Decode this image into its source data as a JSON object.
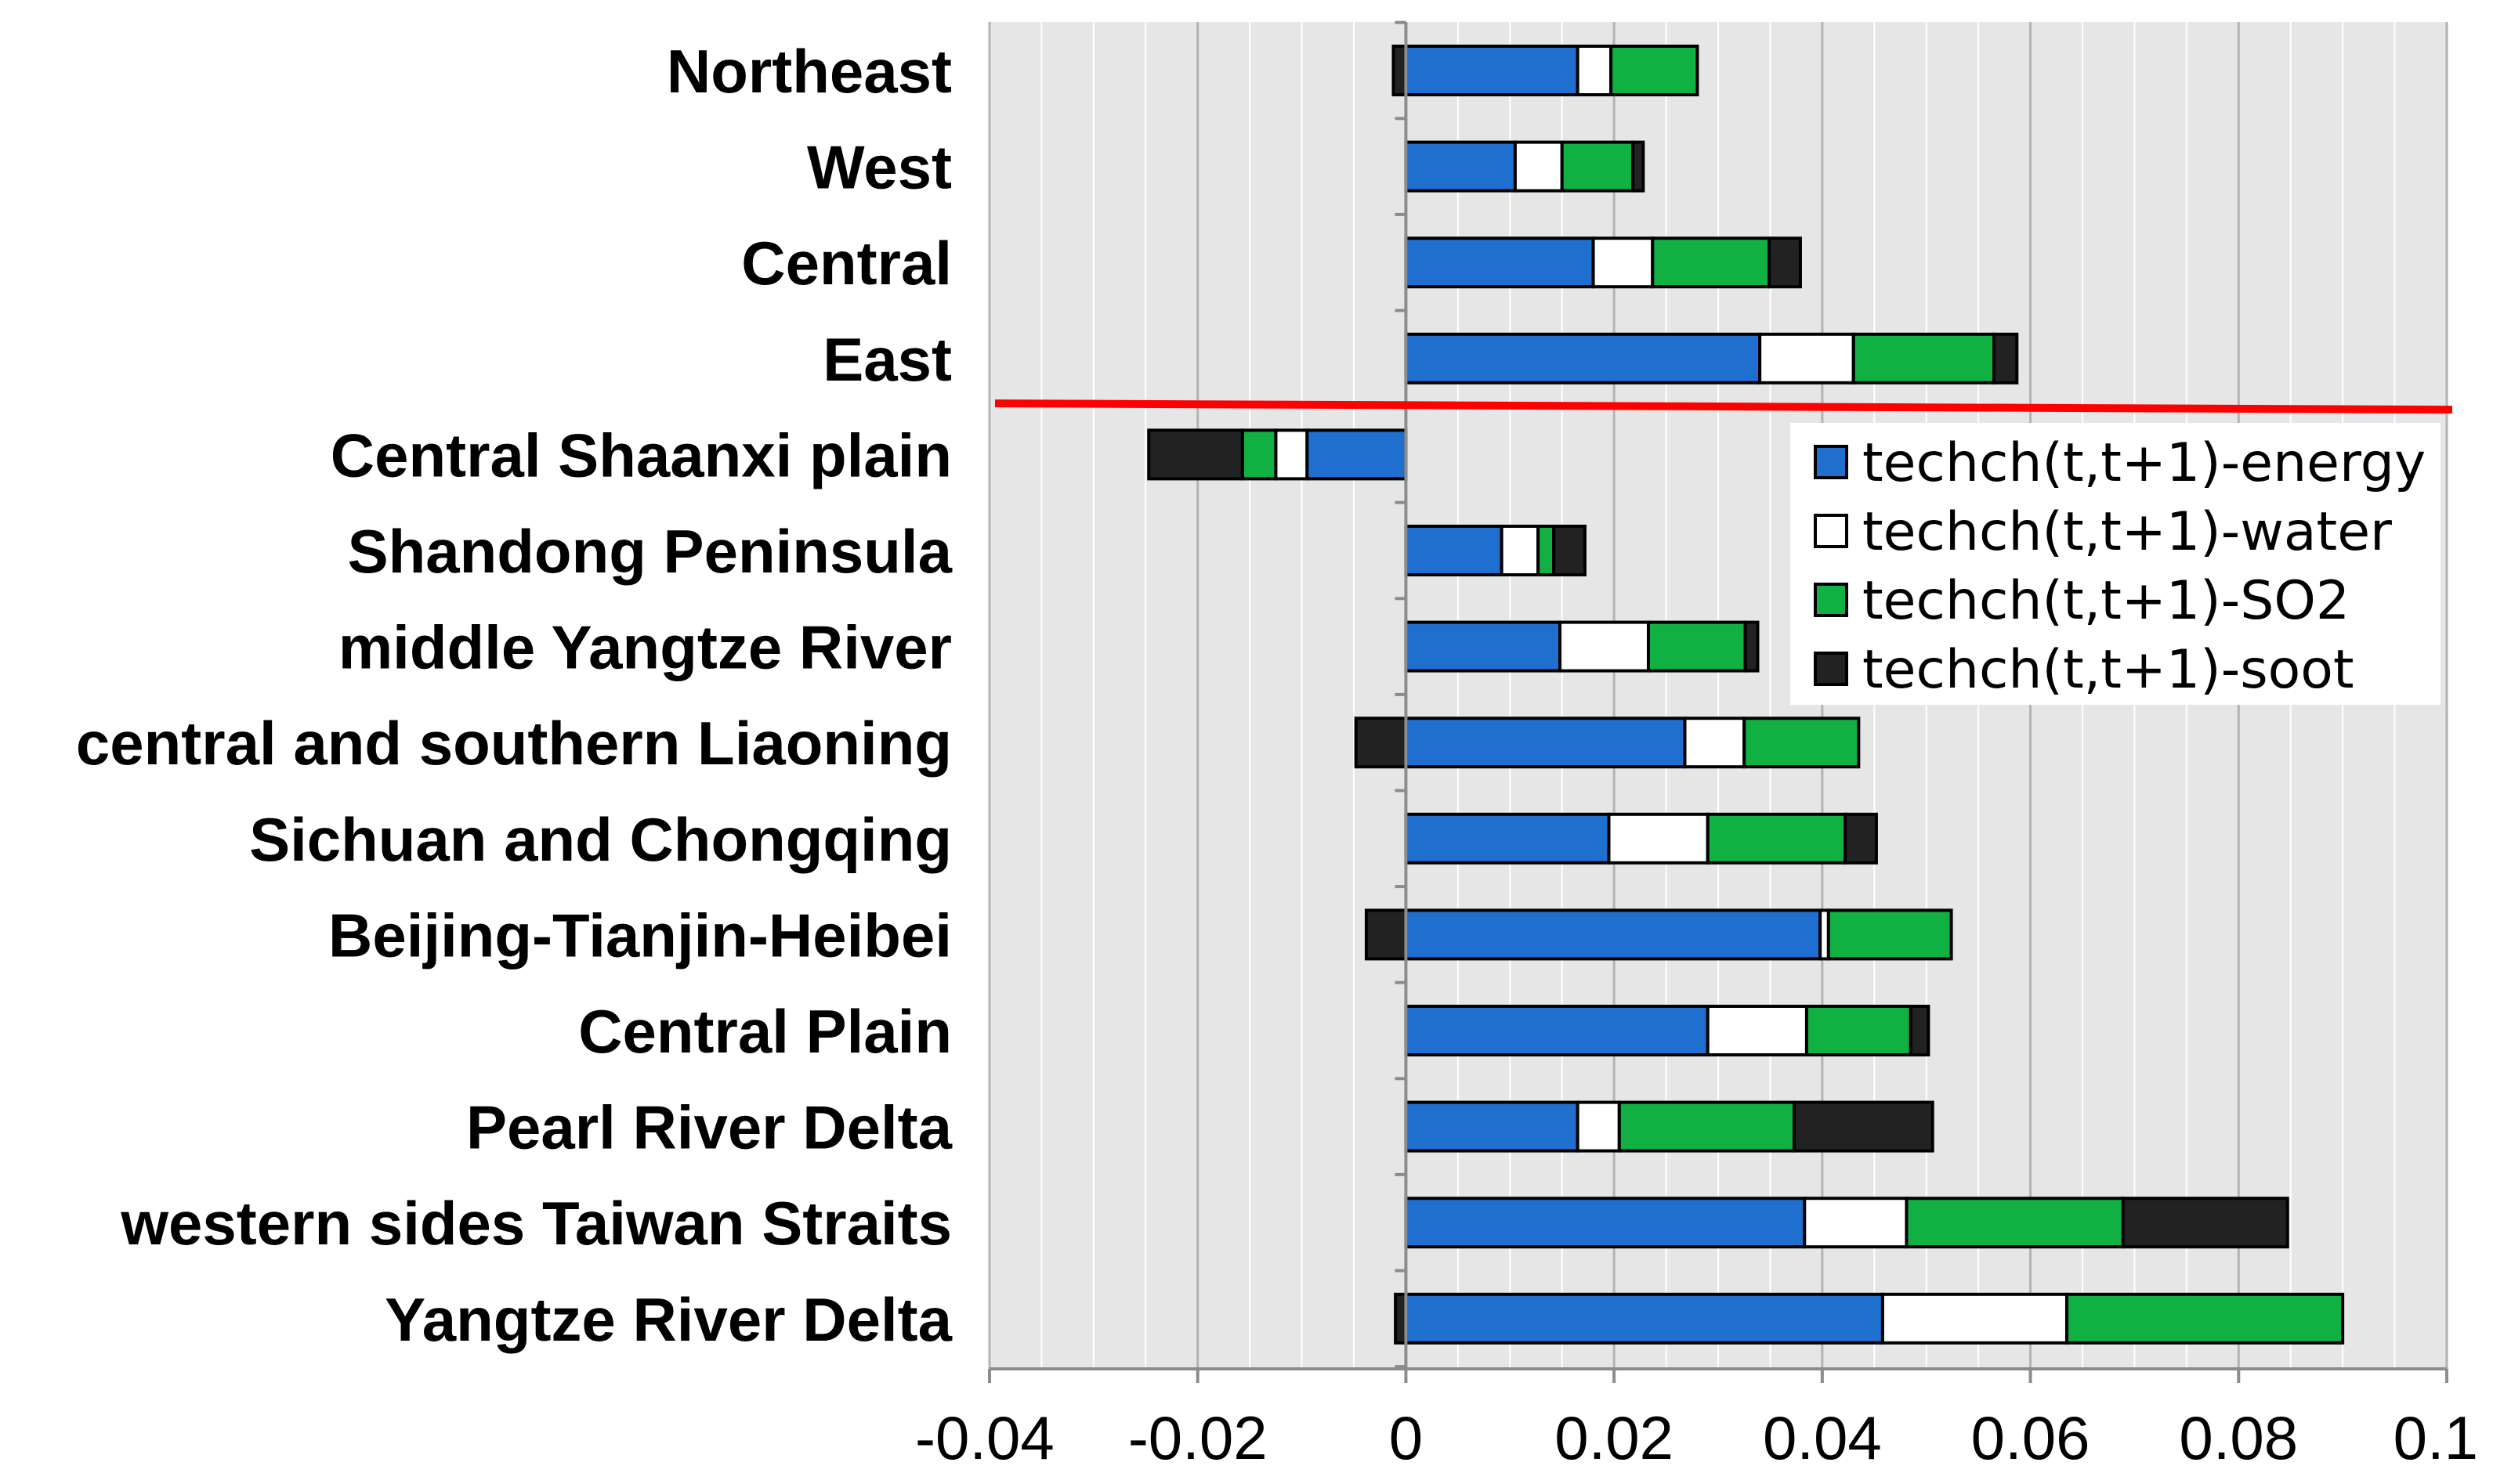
{
  "chart_data": {
    "type": "bar",
    "orientation": "horizontal",
    "stacked": true,
    "categories": [
      "Northeast",
      "West",
      "Central",
      "East",
      "Central Shaanxi plain",
      "Shandong Peninsula",
      "middle Yangtze River",
      "central and southern Liaoning",
      "Sichuan and Chongqing",
      "Beijing-Tianjin-Heibei",
      "Central Plain",
      "Pearl River Delta",
      "western sides Taiwan Straits",
      "Yangtze River Delta"
    ],
    "series": [
      {
        "name": "techch(t,t+1)-energy",
        "color": "#1f6fcf",
        "values": [
          0.0165,
          0.0105,
          0.018,
          0.034,
          -0.0095,
          0.0092,
          0.0148,
          0.0268,
          0.0195,
          0.0398,
          0.029,
          0.0165,
          0.0383,
          0.0458
        ]
      },
      {
        "name": "techch(t,t+1)-water",
        "color": "#ffffff",
        "values": [
          0.0032,
          0.0045,
          0.0057,
          0.009,
          -0.003,
          0.0035,
          0.0085,
          0.0057,
          0.0095,
          0.0008,
          0.0095,
          0.004,
          0.0098,
          0.0177
        ]
      },
      {
        "name": "techch(t,t+1)-SO2",
        "color": "#10b043",
        "values": [
          0.0083,
          0.0068,
          0.0112,
          0.0135,
          -0.0032,
          0.0015,
          0.0093,
          0.011,
          0.0132,
          0.0118,
          0.01,
          0.0168,
          0.0208,
          0.0265
        ]
      },
      {
        "name": "techch(t,t+1)-soot",
        "color": "#222222",
        "values": [
          -0.0012,
          0.001,
          0.003,
          0.0022,
          -0.009,
          0.003,
          0.0012,
          -0.0048,
          0.003,
          -0.0038,
          0.0017,
          0.0133,
          0.0158,
          -0.001
        ]
      }
    ],
    "xlim": [
      -0.04,
      0.1
    ],
    "xticks": [
      -0.04,
      -0.02,
      0,
      0.02,
      0.04,
      0.06,
      0.08,
      0.1
    ],
    "xtick_labels": [
      "-0.04",
      "-0.02",
      "0",
      "0.02",
      "0.04",
      "0.06",
      "0.08",
      "0.1"
    ],
    "grid": true,
    "separator_after_category": "East",
    "separator_color": "#ff0000",
    "legend_position": "right",
    "plot_background": "#e6e6e6",
    "title": "",
    "xlabel": "",
    "ylabel": ""
  }
}
